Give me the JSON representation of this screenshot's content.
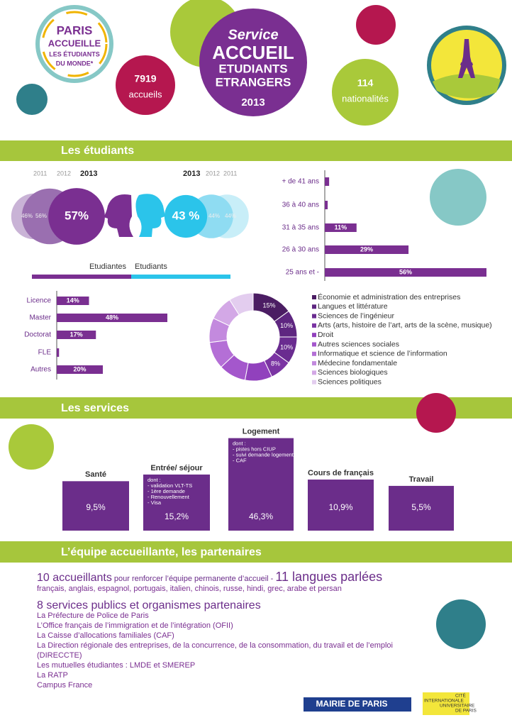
{
  "header": {
    "logo_lines": [
      "PARIS",
      "ACCUEILLE",
      "LES ÉTUDIANTS",
      "DU MONDE*"
    ],
    "service_lines": [
      "Service",
      "ACCUEIL",
      "ETUDIANTS",
      "ETRANGERS",
      "2013"
    ],
    "stats": [
      {
        "number": 7919,
        "label": "accueils"
      },
      {
        "number": 114,
        "label": "nationalités"
      }
    ]
  },
  "sections": [
    "Les étudiants",
    "Les services",
    "L’équipe accueillante, les partenaires"
  ],
  "gender": {
    "female": {
      "years": [
        "2011",
        "2012",
        "2013"
      ],
      "values": [
        46,
        56,
        57
      ],
      "value_labels": [
        "46%",
        "56%",
        "57%"
      ],
      "label": "Etudiantes",
      "colors": [
        "#c9b3d6",
        "#9a6fb0",
        "#7a2f91"
      ]
    },
    "male": {
      "years": [
        "2013",
        "2012",
        "2011"
      ],
      "values": [
        43,
        44,
        44
      ],
      "value_labels": [
        "43 %",
        "44%",
        "44%"
      ],
      "label": "Etudiants",
      "colors": [
        "#2bc4ea",
        "#8fdcf2",
        "#c8eef8"
      ]
    }
  },
  "chart_data": [
    {
      "type": "hbar",
      "categories": [
        "+ de 41 ans",
        "36 à 40 ans",
        "31 à 35 ans",
        "26 à 30 ans",
        "25 ans et -"
      ],
      "values": [
        1.5,
        1,
        11,
        29,
        56
      ],
      "value_labels": [
        null,
        null,
        "11%",
        "29%",
        "56%"
      ],
      "xlim": [
        0,
        56
      ],
      "color": "#7a2f91"
    },
    {
      "type": "hbar",
      "categories": [
        "Licence",
        "Master",
        "Doctorat",
        "FLE",
        "Autres"
      ],
      "values": [
        14,
        48,
        17,
        1,
        20
      ],
      "value_labels": [
        "14%",
        "48%",
        "17%",
        null,
        "20%"
      ],
      "xlim": [
        0,
        48
      ],
      "color": "#7a2f91"
    },
    {
      "type": "donut",
      "categories": [
        "Économie et administration des entreprises",
        "Langues et littérature",
        "Sciences de l’ingénieur",
        "Arts (arts, histoire de l’art, arts de la scène, musique)",
        "Droit",
        "Autres sciences sociales",
        "Informatique et science de l’information",
        "Médecine fondamentale",
        "Sciences biologiques",
        "Sciences politiques"
      ],
      "values": [
        15,
        10,
        10,
        8,
        10,
        10,
        10,
        9,
        9,
        9
      ],
      "value_labels": [
        "15%",
        "10%",
        "10%",
        "8%",
        null,
        null,
        null,
        null,
        null,
        null
      ],
      "colors": [
        "#4b1d63",
        "#5e2680",
        "#6a2c90",
        "#7b34a3",
        "#9141bd",
        "#a457cc",
        "#b46fd6",
        "#c38ade",
        "#d3a8e6",
        "#e3cdef"
      ]
    },
    {
      "type": "bar",
      "categories": [
        "Santé",
        "Entrée/ séjour",
        "Logement",
        "Cours de français",
        "Travail"
      ],
      "values": [
        9.5,
        15.2,
        46.3,
        10.9,
        5.5
      ],
      "value_labels": [
        "9,5%",
        "15,2%",
        "46,3%",
        "10,9%",
        "5,5%"
      ],
      "color": "#6b2d8a",
      "notes": [
        null,
        {
          "title": "dont :",
          "items": [
            "- validation VLT-TS",
            "- 1ère demande",
            "- Renouvellement",
            "- Visa"
          ]
        },
        {
          "title": "dont :",
          "items": [
            "- pistes hors CIUP",
            "- suivi demande logement CIUP",
            "- CAF"
          ]
        },
        null,
        null
      ]
    }
  ],
  "team": {
    "staff_count": "10 accueillants",
    "staff_text": "pour renforcer l’équipe permanente d’accueil -",
    "languages_count": "11 langues parlées",
    "languages": "français, anglais, espagnol, portugais, italien, chinois, russe, hindi, grec, arabe et persan",
    "partners_title": "8 services publics et organismes partenaires",
    "partners": [
      "La Préfecture de Police de Paris",
      "L’Office français de l’immigration et de l’intégration (OFII)",
      "La Caisse d’allocations familiales (CAF)",
      "La Direction régionale des entreprises, de la concurrence, de la consommation, du travail et de l’emploi (DIRECCTE)",
      "Les mutuelles étudiantes : LMDE et SMEREP",
      "La RATP",
      "Campus France"
    ]
  },
  "footer": {
    "mairie": "MAIRIE DE PARIS",
    "ciup": [
      "CITÉ",
      "INTERNATIONALE",
      "UNIVERSITAIRE",
      "DE PARIS"
    ]
  }
}
